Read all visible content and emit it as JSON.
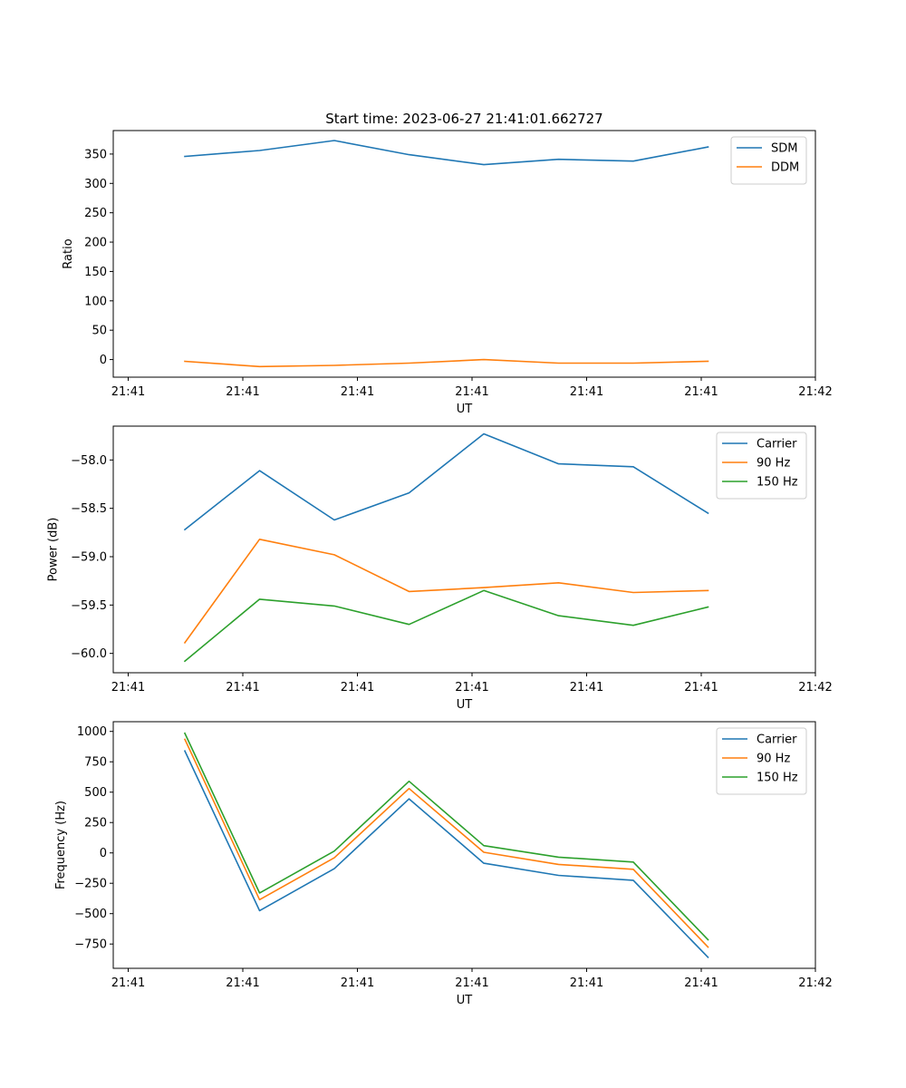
{
  "figure_title": "Start time: 2023-06-27 21:41:01.662727",
  "colors": {
    "blue": "#1f77b4",
    "orange": "#ff7f0e",
    "green": "#2ca02c"
  },
  "chart_data": [
    {
      "type": "line",
      "title": "Start time: 2023-06-27 21:41:01.662727",
      "xlabel": "UT",
      "ylabel": "Ratio",
      "x_tick_labels": [
        "21:41",
        "21:41",
        "21:41",
        "21:41",
        "21:41",
        "21:41",
        "21:42"
      ],
      "y_ticks": [
        0,
        50,
        100,
        150,
        200,
        250,
        300,
        350
      ],
      "ylim": [
        -30,
        390
      ],
      "legend_position": "top-right",
      "x_index": [
        0,
        1,
        2,
        3,
        4,
        5,
        6,
        7
      ],
      "series": [
        {
          "name": "SDM",
          "color": "#1f77b4",
          "values": [
            346,
            356,
            373,
            349,
            332,
            341,
            338,
            362
          ]
        },
        {
          "name": "DDM",
          "color": "#ff7f0e",
          "values": [
            -3,
            -12,
            -10,
            -6,
            0,
            -6,
            -6,
            -3
          ]
        }
      ]
    },
    {
      "type": "line",
      "title": "",
      "xlabel": "UT",
      "ylabel": "Power (dB)",
      "x_tick_labels": [
        "21:41",
        "21:41",
        "21:41",
        "21:41",
        "21:41",
        "21:41",
        "21:42"
      ],
      "y_ticks": [
        -60.0,
        -59.5,
        -59.0,
        -58.5,
        -58.0
      ],
      "y_tick_labels": [
        "−60.0",
        "−59.5",
        "−59.0",
        "−58.5",
        "−58.0"
      ],
      "ylim": [
        -60.2,
        -57.65
      ],
      "legend_position": "top-right",
      "x_index": [
        0,
        1,
        2,
        3,
        4,
        5,
        6,
        7
      ],
      "series": [
        {
          "name": "Carrier",
          "color": "#1f77b4",
          "values": [
            -58.72,
            -58.11,
            -58.62,
            -58.34,
            -57.73,
            -58.04,
            -58.07,
            -58.55
          ]
        },
        {
          "name": "90 Hz",
          "color": "#ff7f0e",
          "values": [
            -59.89,
            -58.82,
            -58.98,
            -59.36,
            -59.32,
            -59.27,
            -59.37,
            -59.35
          ]
        },
        {
          "name": "150 Hz",
          "color": "#2ca02c",
          "values": [
            -60.08,
            -59.44,
            -59.51,
            -59.7,
            -59.35,
            -59.61,
            -59.71,
            -59.52
          ]
        }
      ]
    },
    {
      "type": "line",
      "title": "",
      "xlabel": "UT",
      "ylabel": "Frequency (Hz)",
      "x_tick_labels": [
        "21:41",
        "21:41",
        "21:41",
        "21:41",
        "21:41",
        "21:41",
        "21:42"
      ],
      "y_ticks": [
        -750,
        -500,
        -250,
        0,
        250,
        500,
        750,
        1000
      ],
      "y_tick_labels": [
        "−750",
        "−500",
        "−250",
        "0",
        "250",
        "500",
        "750",
        "1000"
      ],
      "ylim": [
        -950,
        1080
      ],
      "legend_position": "top-right",
      "x_index": [
        0,
        1,
        2,
        3,
        4,
        5,
        6,
        7
      ],
      "series": [
        {
          "name": "Carrier",
          "color": "#1f77b4",
          "values": [
            840,
            -475,
            -130,
            445,
            -85,
            -185,
            -225,
            -860
          ]
        },
        {
          "name": "90 Hz",
          "color": "#ff7f0e",
          "values": [
            935,
            -385,
            -40,
            530,
            5,
            -95,
            -135,
            -775
          ]
        },
        {
          "name": "150 Hz",
          "color": "#2ca02c",
          "values": [
            985,
            -330,
            15,
            590,
            60,
            -35,
            -75,
            -715
          ]
        }
      ]
    }
  ]
}
